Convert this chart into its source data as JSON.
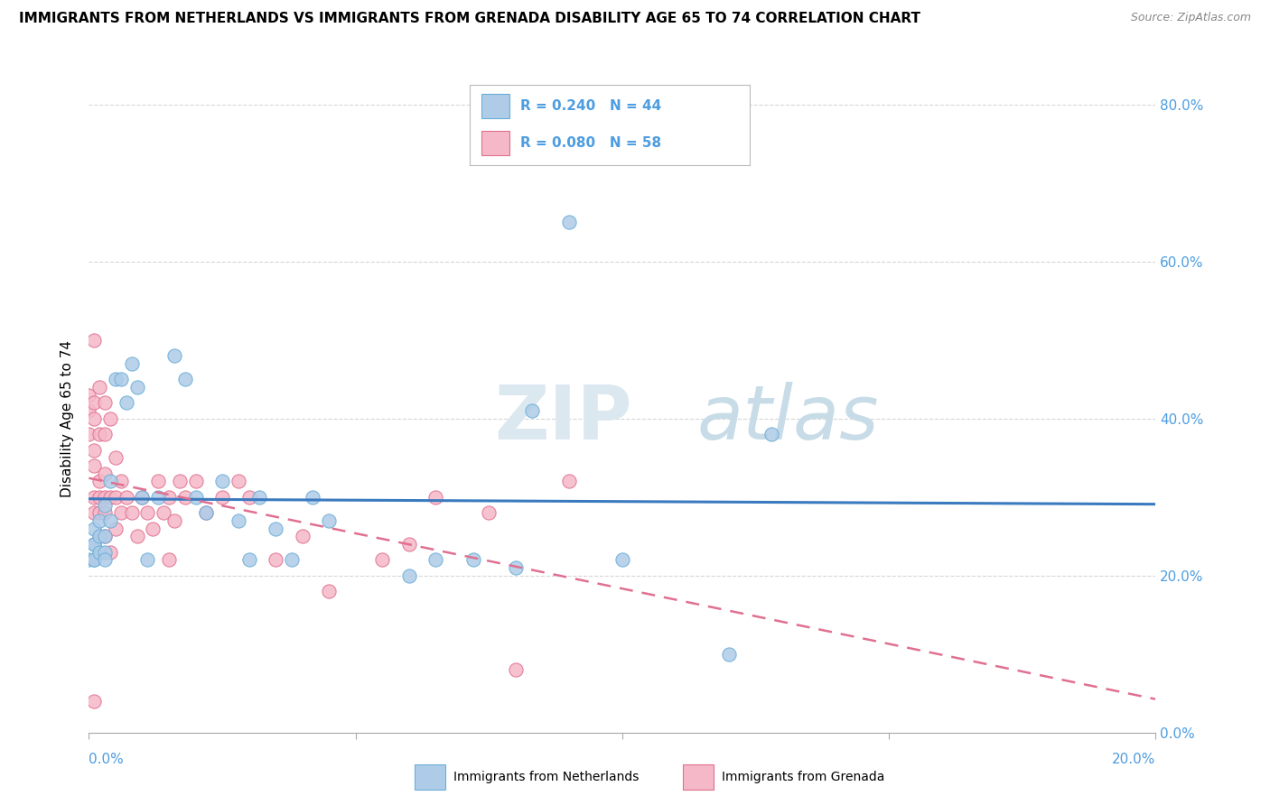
{
  "title": "IMMIGRANTS FROM NETHERLANDS VS IMMIGRANTS FROM GRENADA DISABILITY AGE 65 TO 74 CORRELATION CHART",
  "source": "Source: ZipAtlas.com",
  "ylabel": "Disability Age 65 to 74",
  "series": [
    {
      "name": "Immigrants from Netherlands",
      "R": 0.24,
      "N": 44,
      "marker_color": "#aecce8",
      "marker_edge": "#6baed6",
      "line_color": "#3a7abf",
      "line_style": "solid"
    },
    {
      "name": "Immigrants from Grenada",
      "R": 0.08,
      "N": 58,
      "marker_color": "#f5b8c8",
      "marker_edge": "#e07090",
      "line_color": "#e07090",
      "line_style": "dashed"
    }
  ],
  "xlim": [
    0.0,
    0.2
  ],
  "ylim": [
    0.0,
    0.8
  ],
  "yticks": [
    0.0,
    0.2,
    0.4,
    0.6,
    0.8
  ],
  "xticks": [
    0.0,
    0.05,
    0.1,
    0.15,
    0.2
  ],
  "netherlands_x": [
    0.0,
    0.001,
    0.001,
    0.001,
    0.001,
    0.001,
    0.002,
    0.002,
    0.002,
    0.003,
    0.003,
    0.003,
    0.003,
    0.004,
    0.004,
    0.005,
    0.006,
    0.007,
    0.008,
    0.009,
    0.01,
    0.011,
    0.013,
    0.016,
    0.018,
    0.02,
    0.022,
    0.025,
    0.028,
    0.03,
    0.032,
    0.035,
    0.038,
    0.042,
    0.045,
    0.06,
    0.065,
    0.072,
    0.08,
    0.083,
    0.09,
    0.1,
    0.12,
    0.128
  ],
  "netherlands_y": [
    0.22,
    0.24,
    0.22,
    0.26,
    0.24,
    0.22,
    0.27,
    0.25,
    0.23,
    0.29,
    0.25,
    0.23,
    0.22,
    0.32,
    0.27,
    0.45,
    0.45,
    0.42,
    0.47,
    0.44,
    0.3,
    0.22,
    0.3,
    0.48,
    0.45,
    0.3,
    0.28,
    0.32,
    0.27,
    0.22,
    0.3,
    0.26,
    0.22,
    0.3,
    0.27,
    0.2,
    0.22,
    0.22,
    0.21,
    0.41,
    0.65,
    0.22,
    0.1,
    0.38
  ],
  "grenada_x": [
    0.0,
    0.0,
    0.0,
    0.001,
    0.001,
    0.001,
    0.001,
    0.001,
    0.001,
    0.001,
    0.001,
    0.002,
    0.002,
    0.002,
    0.002,
    0.002,
    0.002,
    0.003,
    0.003,
    0.003,
    0.003,
    0.003,
    0.003,
    0.004,
    0.004,
    0.004,
    0.005,
    0.005,
    0.005,
    0.006,
    0.006,
    0.007,
    0.008,
    0.009,
    0.01,
    0.011,
    0.012,
    0.013,
    0.014,
    0.015,
    0.015,
    0.016,
    0.017,
    0.018,
    0.02,
    0.022,
    0.025,
    0.028,
    0.03,
    0.035,
    0.04,
    0.045,
    0.055,
    0.06,
    0.065,
    0.075,
    0.08,
    0.09
  ],
  "grenada_y": [
    0.43,
    0.41,
    0.38,
    0.5,
    0.42,
    0.4,
    0.36,
    0.34,
    0.3,
    0.28,
    0.04,
    0.44,
    0.38,
    0.32,
    0.3,
    0.28,
    0.25,
    0.42,
    0.38,
    0.33,
    0.3,
    0.28,
    0.25,
    0.4,
    0.3,
    0.23,
    0.35,
    0.3,
    0.26,
    0.32,
    0.28,
    0.3,
    0.28,
    0.25,
    0.3,
    0.28,
    0.26,
    0.32,
    0.28,
    0.3,
    0.22,
    0.27,
    0.32,
    0.3,
    0.32,
    0.28,
    0.3,
    0.32,
    0.3,
    0.22,
    0.25,
    0.18,
    0.22,
    0.24,
    0.3,
    0.28,
    0.08,
    0.32
  ],
  "watermark_zip_color": "#dce8f0",
  "watermark_atlas_color": "#c8dce8",
  "bg_color": "#ffffff",
  "grid_color": "#cccccc",
  "right_tick_color": "#4d9de0",
  "legend_box_color": "#aaaaaa",
  "title_fontsize": 11,
  "source_fontsize": 9,
  "tick_fontsize": 11,
  "ylabel_fontsize": 11,
  "legend_fontsize": 11,
  "watermark_fontsize": 60
}
